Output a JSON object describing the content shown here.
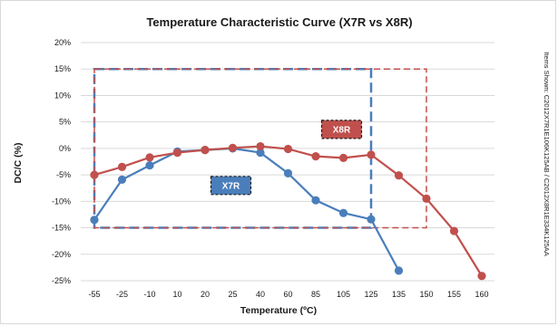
{
  "chart_data": {
    "type": "line",
    "title": "Temperature Characteristic Curve (X7R vs X8R)",
    "xlabel": "Temperature (ºC)",
    "ylabel": "DC/C (%)",
    "side_note": "Items Shown: C2012X7R1E106K125AB / C2012X8R1E334K125AA",
    "categories": [
      "-55",
      "-25",
      "-10",
      "10",
      "20",
      "25",
      "40",
      "60",
      "85",
      "105",
      "125",
      "135",
      "150",
      "155",
      "160"
    ],
    "y_ticks": [
      "20%",
      "15%",
      "10%",
      "5%",
      "0%",
      "-5%",
      "-10%",
      "-15%",
      "-20%",
      "-25%"
    ],
    "ylim": [
      -25,
      20
    ],
    "grid": true,
    "series": [
      {
        "name": "X7R",
        "color": "#4a7ebb",
        "values": [
          -13.5,
          -5.9,
          -3.2,
          -0.6,
          -0.3,
          0.0,
          -0.8,
          -4.7,
          -9.8,
          -12.2,
          -13.4,
          -23.1,
          null,
          null,
          null
        ]
      },
      {
        "name": "X8R",
        "color": "#c0504d",
        "values": [
          -5.0,
          -3.5,
          -1.7,
          -0.8,
          -0.3,
          0.1,
          0.4,
          -0.1,
          -1.5,
          -1.8,
          -1.2,
          -5.1,
          -9.5,
          -15.6,
          -24.1
        ]
      }
    ],
    "spec_boxes": [
      {
        "name": "X7R",
        "x_from": "-55",
        "x_to": "125",
        "y_from": -15,
        "y_to": 15,
        "color": "#4a7ebb"
      },
      {
        "name": "X8R",
        "x_from": "-55",
        "x_to": "150",
        "y_from": -15,
        "y_to": 15,
        "color": "#c0504d"
      }
    ]
  }
}
